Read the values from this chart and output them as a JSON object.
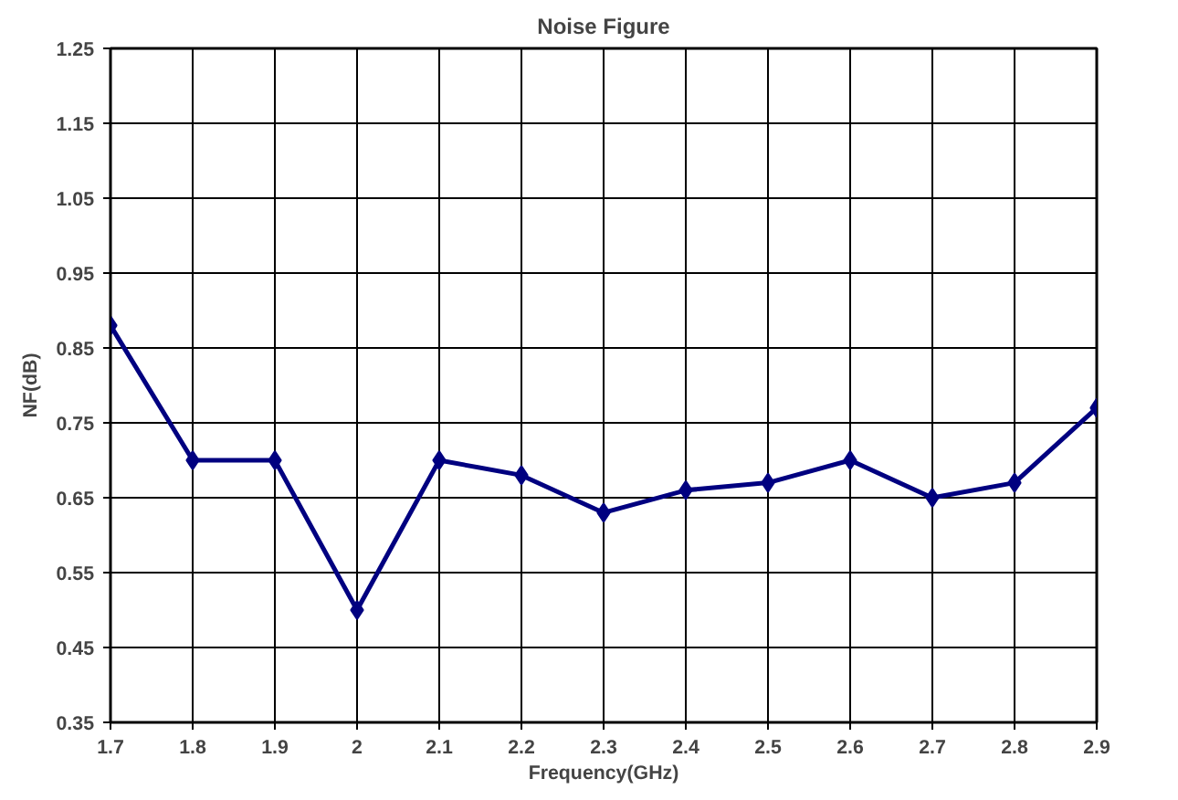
{
  "chart_data": {
    "type": "line",
    "title": "Noise Figure",
    "xlabel": "Frequency(GHz)",
    "ylabel": "NF(dB)",
    "x": [
      1.7,
      1.8,
      1.9,
      2.0,
      2.1,
      2.2,
      2.3,
      2.4,
      2.5,
      2.6,
      2.7,
      2.8,
      2.9
    ],
    "series": [
      {
        "color": "#000080",
        "values": [
          0.88,
          0.7,
          0.7,
          0.5,
          0.7,
          0.68,
          0.63,
          0.66,
          0.67,
          0.7,
          0.65,
          0.67,
          0.77
        ]
      }
    ],
    "xlim": [
      1.7,
      2.9
    ],
    "ylim": [
      0.35,
      1.25
    ],
    "xticks": [
      1.7,
      1.8,
      1.9,
      2,
      2.1,
      2.2,
      2.3,
      2.4,
      2.5,
      2.6,
      2.7,
      2.8,
      2.9
    ],
    "yticks": [
      0.35,
      0.45,
      0.55,
      0.65,
      0.75,
      0.85,
      0.95,
      1.05,
      1.15,
      1.25
    ],
    "grid": true,
    "marker": "diamond",
    "line_style": "solid"
  }
}
